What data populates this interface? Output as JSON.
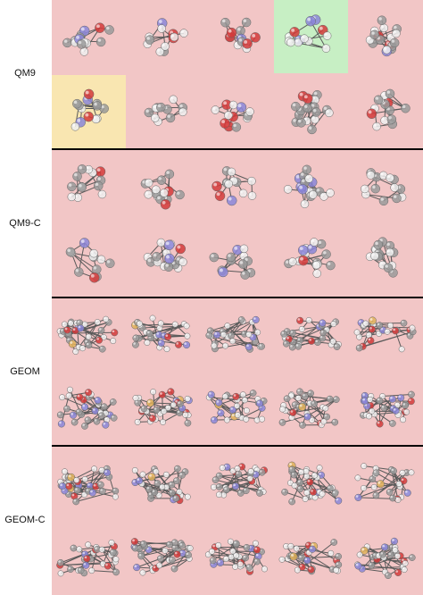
{
  "sections": [
    {
      "id": "qm9",
      "label": "QM9",
      "highlights": {
        "0-3": "green",
        "1-0": "yellow"
      }
    },
    {
      "id": "qm9c",
      "label": "QM9-C",
      "highlights": {}
    },
    {
      "id": "geom",
      "label": "GEOM",
      "highlights": {}
    },
    {
      "id": "geomc",
      "label": "GEOM-C",
      "highlights": {}
    }
  ],
  "colors": {
    "panel_background": "#f2c6c6",
    "highlight_green": "#c7efc4",
    "highlight_yellow": "#f9e6b1",
    "atom_hydrogen": "#eeeeee",
    "atom_carbon": "#9a9a9a",
    "atom_oxygen": "#d33a3a",
    "atom_nitrogen": "#8b86d8",
    "atom_sulfur": "#e0b25a"
  },
  "icon_name": "molecule-icon"
}
